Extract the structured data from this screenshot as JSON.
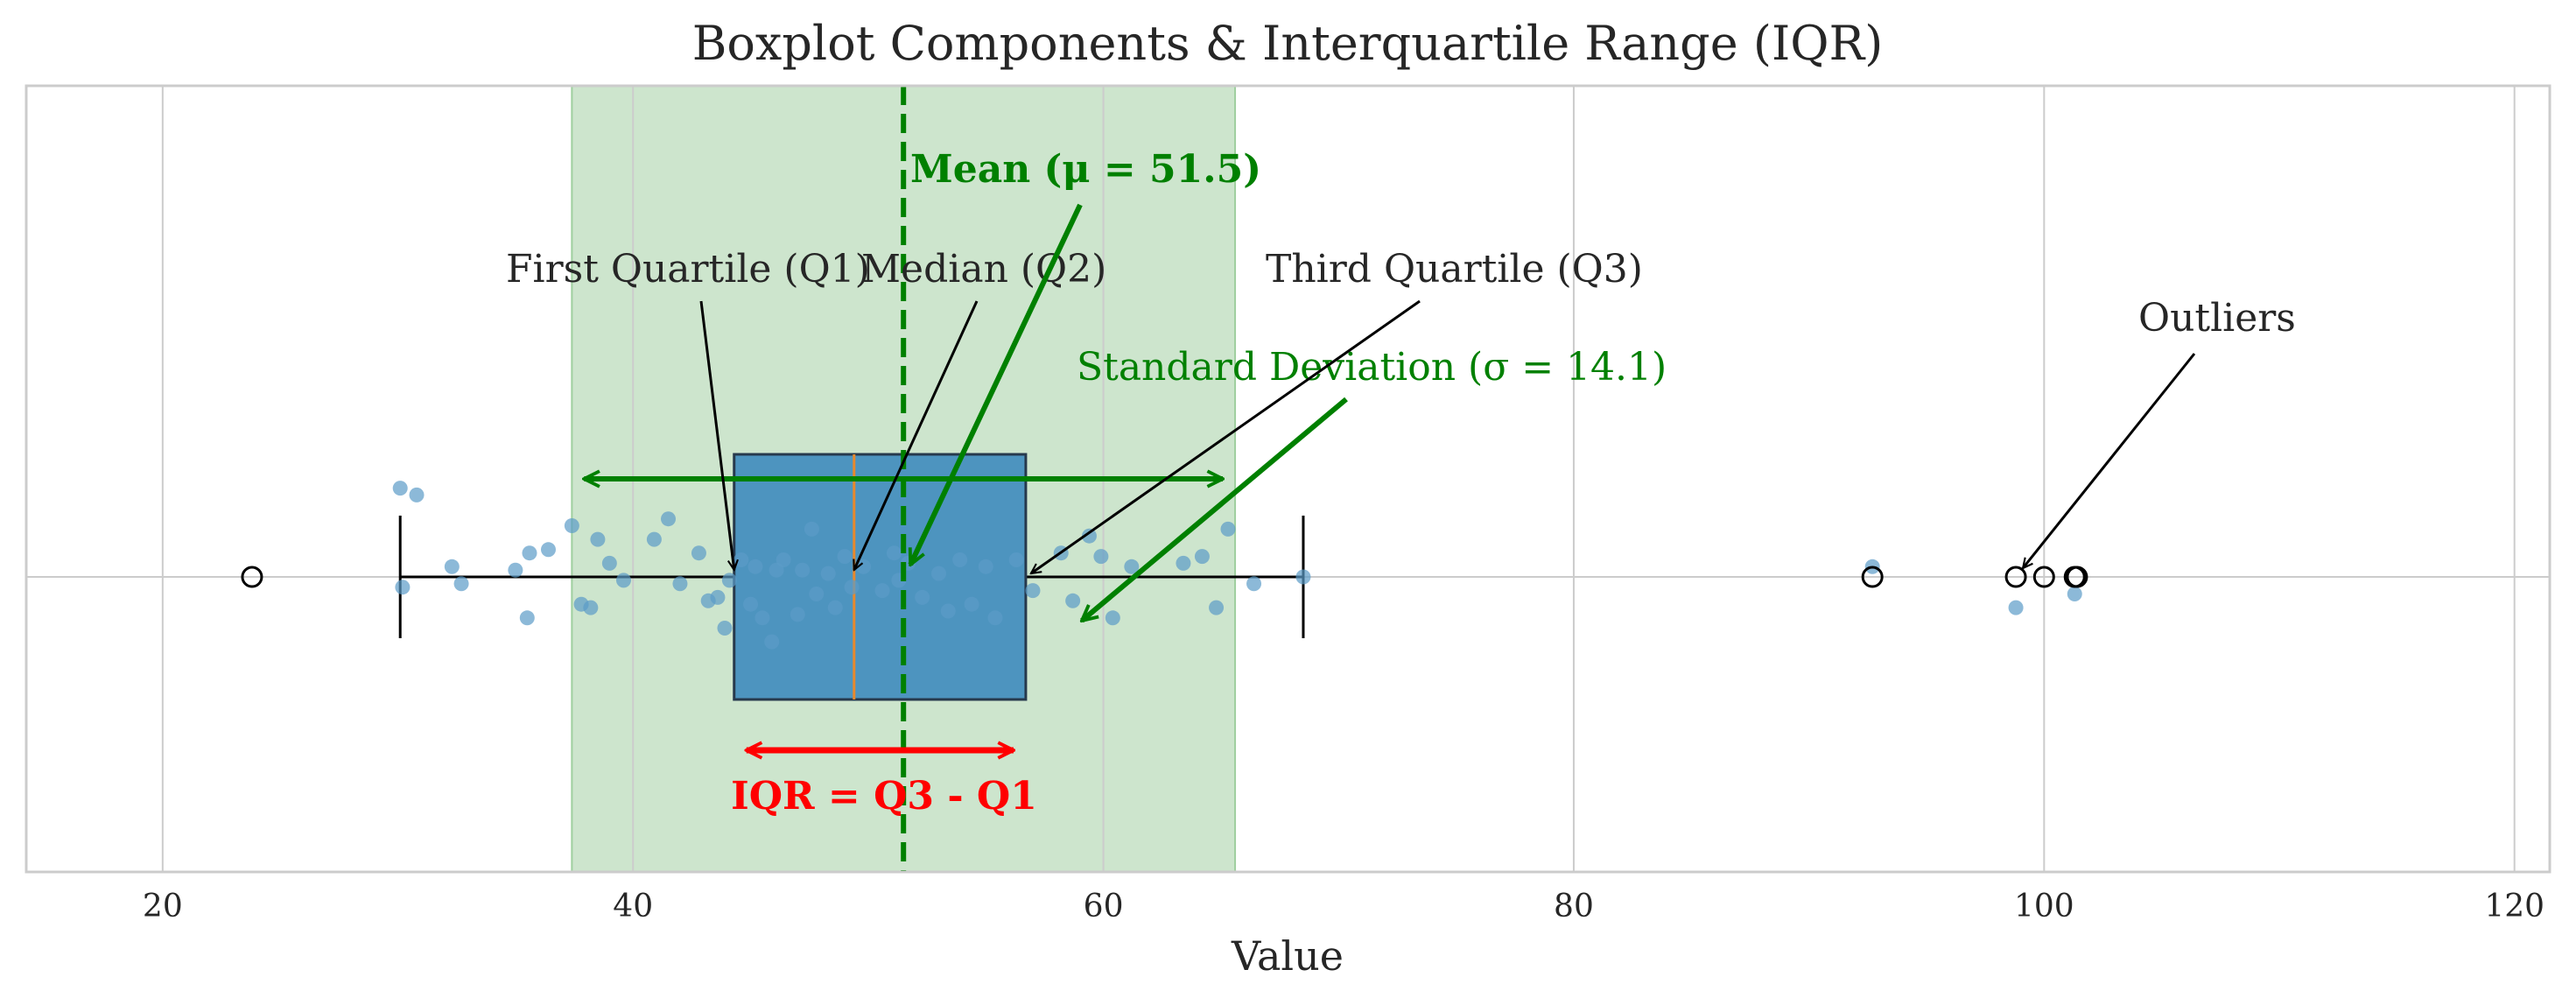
{
  "chart_data": {
    "type": "box",
    "title": "Boxplot Components & Interquartile Range (IQR)",
    "xlabel": "Value",
    "ylabel": "",
    "xlim": [
      14.2,
      121.5
    ],
    "xticks": [
      20,
      40,
      60,
      80,
      100,
      120
    ],
    "grid": true,
    "box": {
      "q1": 44.3,
      "median": 49.4,
      "q3": 56.7,
      "whisker_low": 30.1,
      "whisker_high": 68.5,
      "outliers": [
        23.8,
        92.7,
        98.8,
        100.0,
        101.3,
        101.4
      ]
    },
    "mean": 51.5,
    "std": 14.1,
    "std_band": [
      37.4,
      65.6
    ],
    "jitter_points": [
      {
        "x": 30.1,
        "y": 0.26
      },
      {
        "x": 30.2,
        "y": -0.03
      },
      {
        "x": 30.8,
        "y": 0.24
      },
      {
        "x": 32.3,
        "y": 0.03
      },
      {
        "x": 32.7,
        "y": -0.02
      },
      {
        "x": 35.0,
        "y": 0.02
      },
      {
        "x": 35.5,
        "y": -0.12
      },
      {
        "x": 35.6,
        "y": 0.07
      },
      {
        "x": 36.4,
        "y": 0.08
      },
      {
        "x": 37.4,
        "y": 0.15
      },
      {
        "x": 37.8,
        "y": -0.08
      },
      {
        "x": 38.2,
        "y": -0.09
      },
      {
        "x": 38.5,
        "y": 0.11
      },
      {
        "x": 39.0,
        "y": 0.04
      },
      {
        "x": 39.6,
        "y": -0.01
      },
      {
        "x": 40.9,
        "y": 0.11
      },
      {
        "x": 41.5,
        "y": 0.17
      },
      {
        "x": 42.0,
        "y": -0.02
      },
      {
        "x": 42.8,
        "y": 0.07
      },
      {
        "x": 43.2,
        "y": -0.07
      },
      {
        "x": 43.6,
        "y": -0.06
      },
      {
        "x": 43.9,
        "y": -0.15
      },
      {
        "x": 44.1,
        "y": -0.01
      },
      {
        "x": 44.6,
        "y": 0.05
      },
      {
        "x": 45.0,
        "y": -0.08
      },
      {
        "x": 45.2,
        "y": 0.03
      },
      {
        "x": 45.5,
        "y": -0.12
      },
      {
        "x": 45.9,
        "y": -0.19
      },
      {
        "x": 46.1,
        "y": 0.02
      },
      {
        "x": 46.4,
        "y": 0.05
      },
      {
        "x": 47.0,
        "y": -0.11
      },
      {
        "x": 47.2,
        "y": 0.02
      },
      {
        "x": 47.6,
        "y": 0.14
      },
      {
        "x": 47.8,
        "y": -0.05
      },
      {
        "x": 48.3,
        "y": 0.01
      },
      {
        "x": 48.6,
        "y": -0.09
      },
      {
        "x": 49.0,
        "y": 0.06
      },
      {
        "x": 49.3,
        "y": -0.03
      },
      {
        "x": 49.8,
        "y": 0.03
      },
      {
        "x": 50.6,
        "y": -0.04
      },
      {
        "x": 51.1,
        "y": 0.07
      },
      {
        "x": 51.3,
        "y": -0.01
      },
      {
        "x": 51.7,
        "y": 0.04
      },
      {
        "x": 52.3,
        "y": -0.06
      },
      {
        "x": 53.0,
        "y": 0.01
      },
      {
        "x": 53.4,
        "y": -0.1
      },
      {
        "x": 53.9,
        "y": 0.05
      },
      {
        "x": 54.4,
        "y": -0.08
      },
      {
        "x": 55.0,
        "y": 0.03
      },
      {
        "x": 55.4,
        "y": -0.12
      },
      {
        "x": 56.3,
        "y": 0.05
      },
      {
        "x": 57.0,
        "y": -0.04
      },
      {
        "x": 58.2,
        "y": 0.07
      },
      {
        "x": 58.7,
        "y": -0.07
      },
      {
        "x": 59.4,
        "y": 0.12
      },
      {
        "x": 59.9,
        "y": 0.06
      },
      {
        "x": 60.4,
        "y": -0.12
      },
      {
        "x": 61.2,
        "y": 0.03
      },
      {
        "x": 63.4,
        "y": 0.04
      },
      {
        "x": 64.2,
        "y": 0.06
      },
      {
        "x": 64.8,
        "y": -0.09
      },
      {
        "x": 65.3,
        "y": 0.14
      },
      {
        "x": 66.4,
        "y": -0.02
      },
      {
        "x": 68.5,
        "y": 0.0
      },
      {
        "x": 92.7,
        "y": 0.03
      },
      {
        "x": 98.8,
        "y": -0.09
      },
      {
        "x": 101.3,
        "y": -0.05
      }
    ],
    "annotations": {
      "q1": "First Quartile (Q1)",
      "median": "Median (Q2)",
      "q3": "Third Quartile (Q3)",
      "outliers": "Outliers",
      "mean": "Mean (μ = 51.5)",
      "std": "Standard Deviation (σ = 14.1)",
      "iqr": "IQR = Q3 - Q1"
    },
    "colors": {
      "box_fill": "#4d94bf",
      "box_edge": "#26394d",
      "median_line": "#e8892c",
      "mean_line": "#008000",
      "std_band": "#cde5cd",
      "std_arrow": "#008000",
      "iqr_arrow": "#ff0000",
      "points": "#5b9bc8",
      "grid": "#cccccc",
      "text": "#262626"
    }
  }
}
